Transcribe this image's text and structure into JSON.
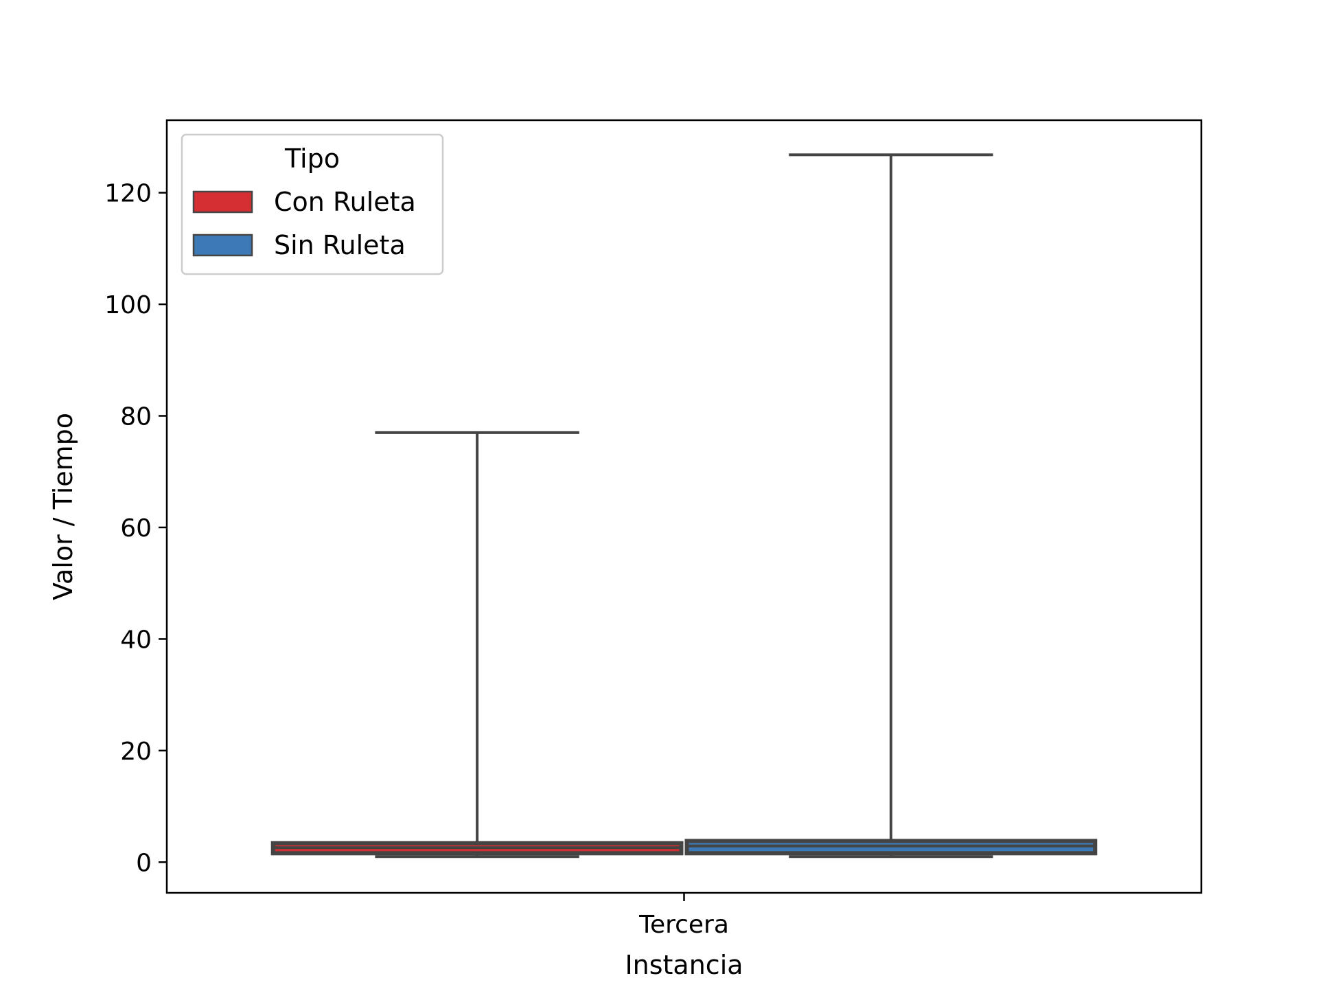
{
  "chart_data": {
    "type": "box",
    "title": "",
    "xlabel": "Instancia",
    "ylabel": "Valor / Tiempo",
    "categories": [
      "Tercera"
    ],
    "ylim": [
      -5.5,
      133
    ],
    "yticks": [
      0,
      20,
      40,
      60,
      80,
      100,
      120
    ],
    "grid": false,
    "legend": {
      "title": "Tipo",
      "placement": "top-left"
    },
    "series": [
      {
        "name": "Con Ruleta",
        "color": "#d62f33",
        "whisker_low": 1.0,
        "q1": 1.6,
        "median": 2.6,
        "q3": 3.4,
        "whisker_high": 77.0
      },
      {
        "name": "Sin Ruleta",
        "color": "#3d7ab5",
        "whisker_low": 1.0,
        "q1": 1.6,
        "median": 2.9,
        "q3": 3.8,
        "whisker_high": 126.8
      }
    ],
    "colors": {
      "edge": "#444444",
      "axis": "#000000"
    }
  }
}
